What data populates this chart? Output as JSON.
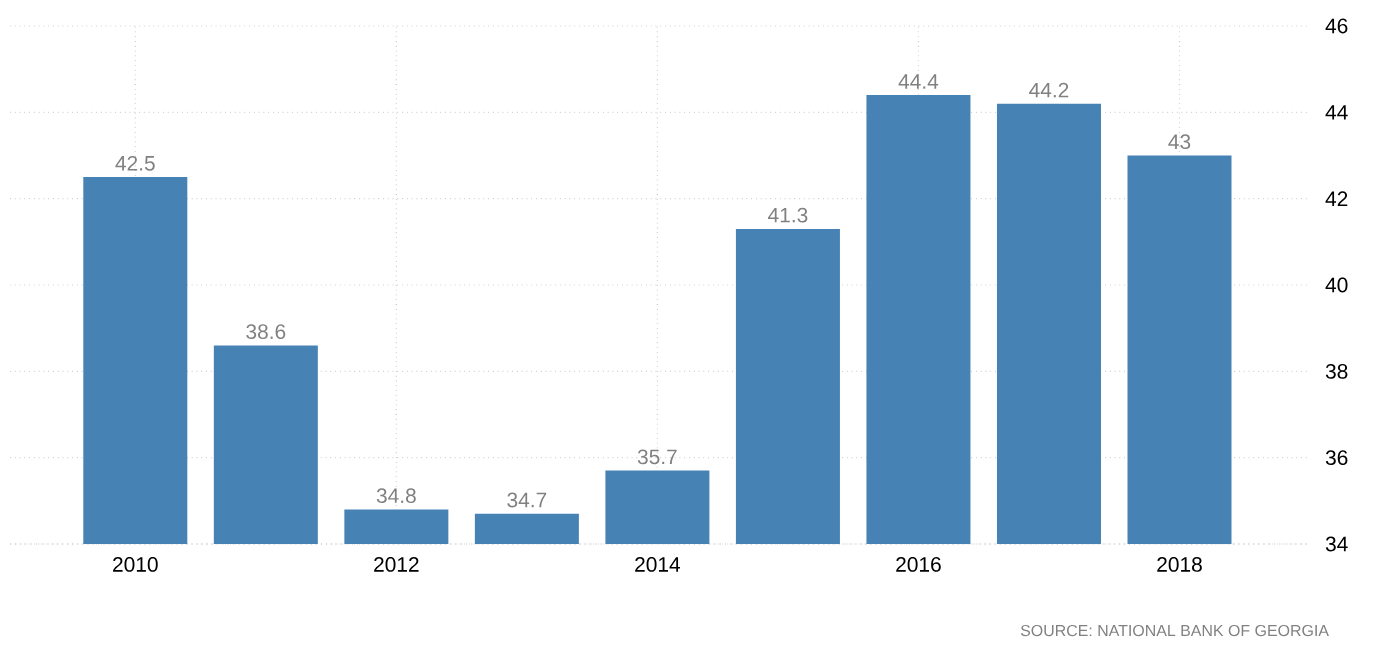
{
  "chart_data": {
    "type": "bar",
    "categories": [
      "2010",
      null,
      "2012",
      null,
      "2014",
      null,
      "2016",
      null,
      "2018"
    ],
    "values": [
      42.5,
      38.6,
      34.8,
      34.7,
      35.7,
      41.3,
      44.4,
      44.2,
      43
    ],
    "color": "#4682b4",
    "ylim": [
      34,
      46
    ],
    "yticks": [
      34,
      36,
      38,
      40,
      42,
      44,
      46
    ],
    "grid": true,
    "data_labels": true,
    "annotations": [
      "SOURCE: NATIONAL BANK OF GEORGIA"
    ]
  }
}
